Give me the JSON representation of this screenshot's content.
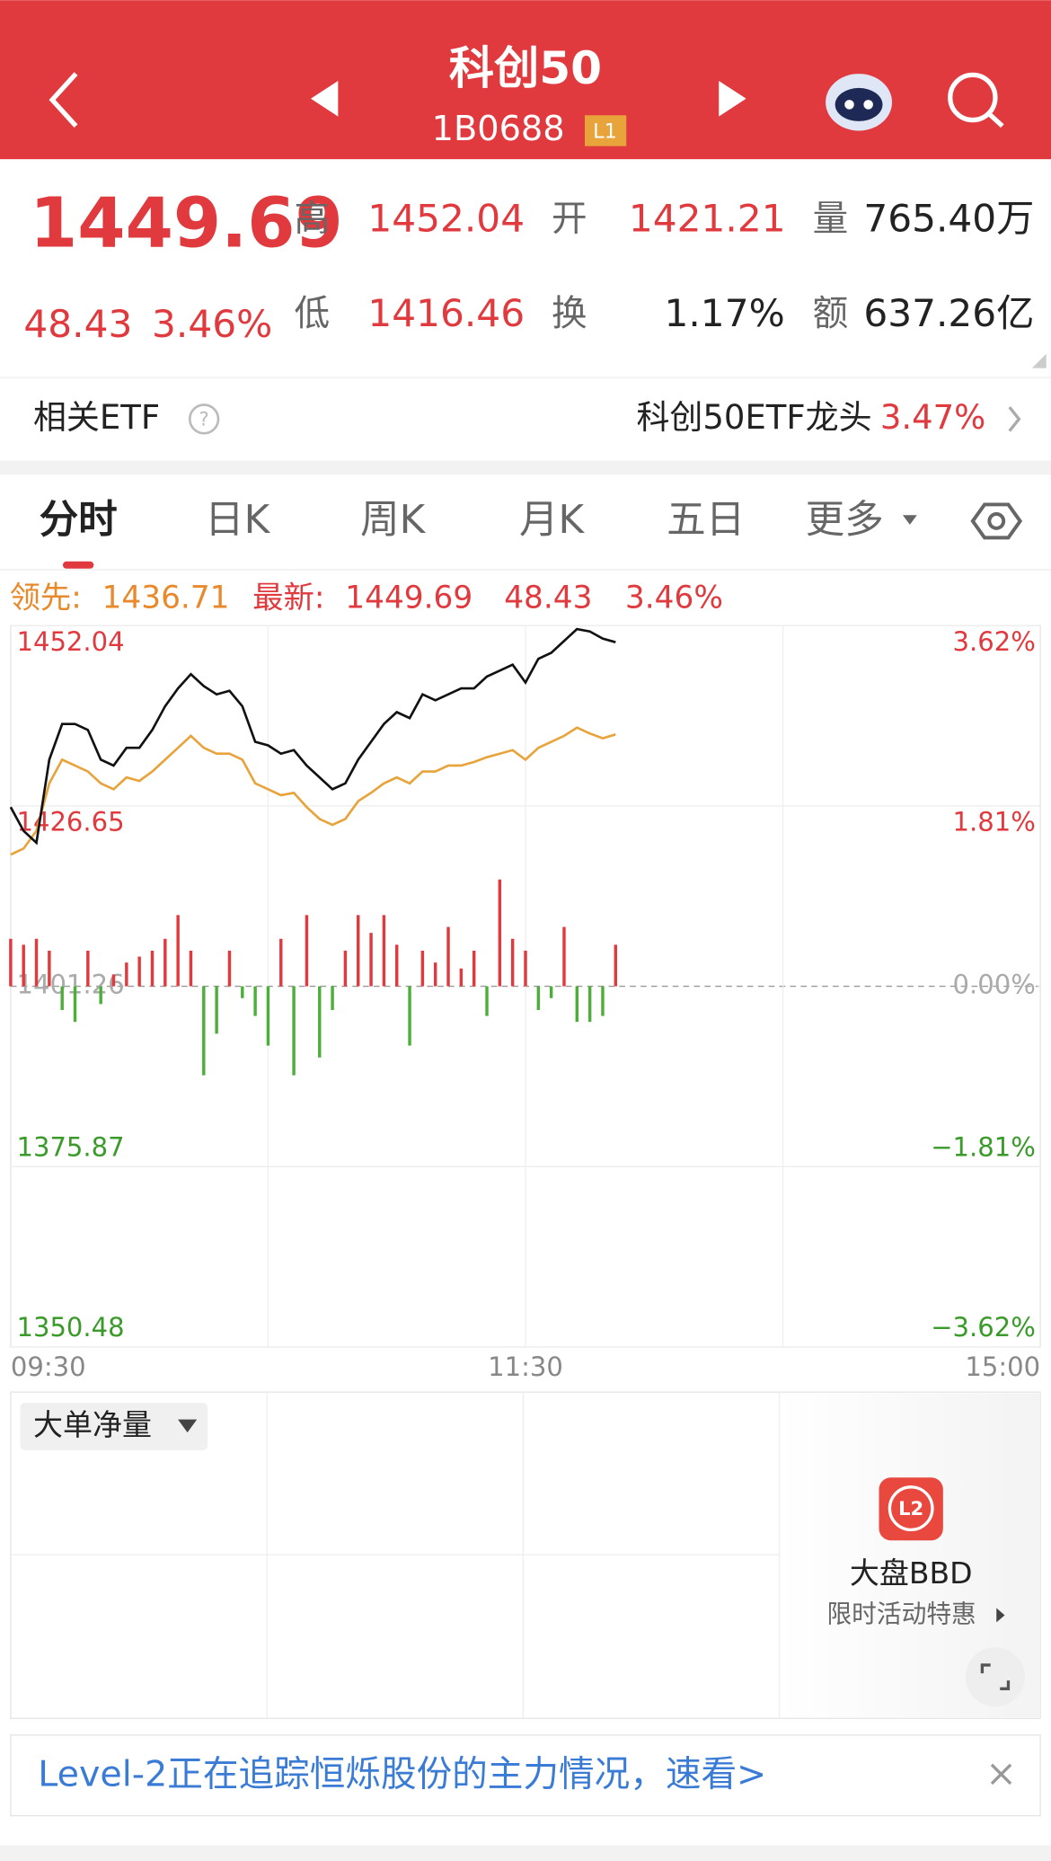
{
  "header": {
    "title": "科创50",
    "code": "1B0688",
    "badge": "L1"
  },
  "quote": {
    "price": 1449.69,
    "change": 48.43,
    "change_pct": "3.46%",
    "fields": [
      {
        "label": "高",
        "value": 1452.04
      },
      {
        "label": "开",
        "value": 1421.21
      },
      {
        "label": "量",
        "value": "765.40万"
      },
      {
        "label": "低",
        "value": 1416.46
      },
      {
        "label": "换",
        "value": "1.17%"
      },
      {
        "label": "额",
        "value": "637.26亿"
      }
    ]
  },
  "etf": {
    "label": "相关ETF",
    "name": "科创50ETF龙头",
    "change_pct": "3.47%"
  },
  "tabs": [
    "分时",
    "日K",
    "周K",
    "月K",
    "五日",
    "更多"
  ],
  "chart_data": {
    "type": "line",
    "x": [
      0,
      3,
      6,
      9,
      12,
      15,
      18,
      21,
      24,
      27,
      30,
      33,
      36,
      39,
      42,
      45,
      48,
      51,
      54,
      57,
      60,
      63,
      66,
      69,
      72,
      75,
      78,
      81,
      84,
      87,
      90,
      93,
      96,
      99,
      102,
      105,
      108,
      111,
      114,
      117,
      120,
      123,
      126,
      129,
      132,
      135,
      138,
      141
    ],
    "series": [
      {
        "name": "最新:",
        "color": "#111111",
        "values": [
          1426.48,
          1423.14,
          1421.47,
          1433.16,
          1438.18,
          1438.18,
          1437.34,
          1433.16,
          1432.33,
          1434.83,
          1434.83,
          1437.34,
          1440.68,
          1443.19,
          1445.19,
          1443.52,
          1442.35,
          1442.85,
          1440.68,
          1435.67,
          1435.17,
          1434.0,
          1434.5,
          1432.33,
          1430.66,
          1428.99,
          1429.82,
          1433.16,
          1435.67,
          1438.18,
          1439.85,
          1439.01,
          1442.35,
          1441.52,
          1442.35,
          1443.19,
          1443.19,
          1444.86,
          1445.69,
          1446.53,
          1444.02,
          1447.36,
          1448.2,
          1449.87,
          1451.54,
          1451.2,
          1450.2,
          1449.69
        ]
      },
      {
        "name": "领先:",
        "color": "#e8a33b",
        "values": [
          1419.8,
          1420.64,
          1423.14,
          1429.82,
          1433.16,
          1432.33,
          1431.49,
          1429.82,
          1428.99,
          1430.66,
          1430.16,
          1431.49,
          1433.16,
          1434.83,
          1436.51,
          1434.83,
          1434.0,
          1434.0,
          1433.16,
          1429.82,
          1428.99,
          1428.15,
          1428.49,
          1426.48,
          1424.81,
          1423.98,
          1424.81,
          1427.32,
          1428.49,
          1429.82,
          1430.66,
          1429.82,
          1431.49,
          1431.49,
          1432.33,
          1432.33,
          1432.83,
          1433.5,
          1434.0,
          1434.5,
          1433.16,
          1434.83,
          1435.67,
          1436.51,
          1437.67,
          1436.84,
          1436.17,
          1436.71
        ]
      }
    ],
    "volume": {
      "values": [
        40,
        35,
        40,
        30,
        -20,
        -30,
        30,
        -15,
        10,
        20,
        25,
        30,
        40,
        60,
        30,
        -75,
        -40,
        30,
        -10,
        -25,
        -50,
        40,
        -75,
        60,
        -60,
        -20,
        30,
        60,
        45,
        60,
        35,
        -50,
        30,
        20,
        50,
        15,
        30,
        -25,
        90,
        40,
        30,
        -20,
        -10,
        50,
        -30,
        -30,
        -25,
        35
      ],
      "up_color": "#e0393e",
      "down_color": "#4caf3a"
    },
    "xlim": [
      0,
      240
    ],
    "xticks": [
      {
        "value": 0,
        "label": "09:30"
      },
      {
        "value": 120,
        "label": "11:30"
      },
      {
        "value": 240,
        "label": "15:00"
      }
    ],
    "ylim": [
      1350.48,
      1452.04
    ],
    "yticks": [
      1452.04,
      1426.65,
      1401.26,
      1375.87,
      1350.48
    ],
    "y2lim": [
      -3.62,
      3.62
    ],
    "y2ticks": [
      {
        "value": 3.62,
        "label": "3.62%"
      },
      {
        "value": 1.81,
        "label": "1.81%"
      },
      {
        "value": 0,
        "label": "0.00%"
      },
      {
        "value": -1.81,
        "label": "−1.81%"
      },
      {
        "value": -3.62,
        "label": "−3.62%"
      }
    ],
    "grid": true
  },
  "flow": {
    "selector": "大单净量",
    "promo_title": "大盘BBD",
    "promo_sub": "限时活动特惠",
    "icon": "L2"
  },
  "banner": "Level-2正在追踪恒烁股份的主力情况，速看>"
}
